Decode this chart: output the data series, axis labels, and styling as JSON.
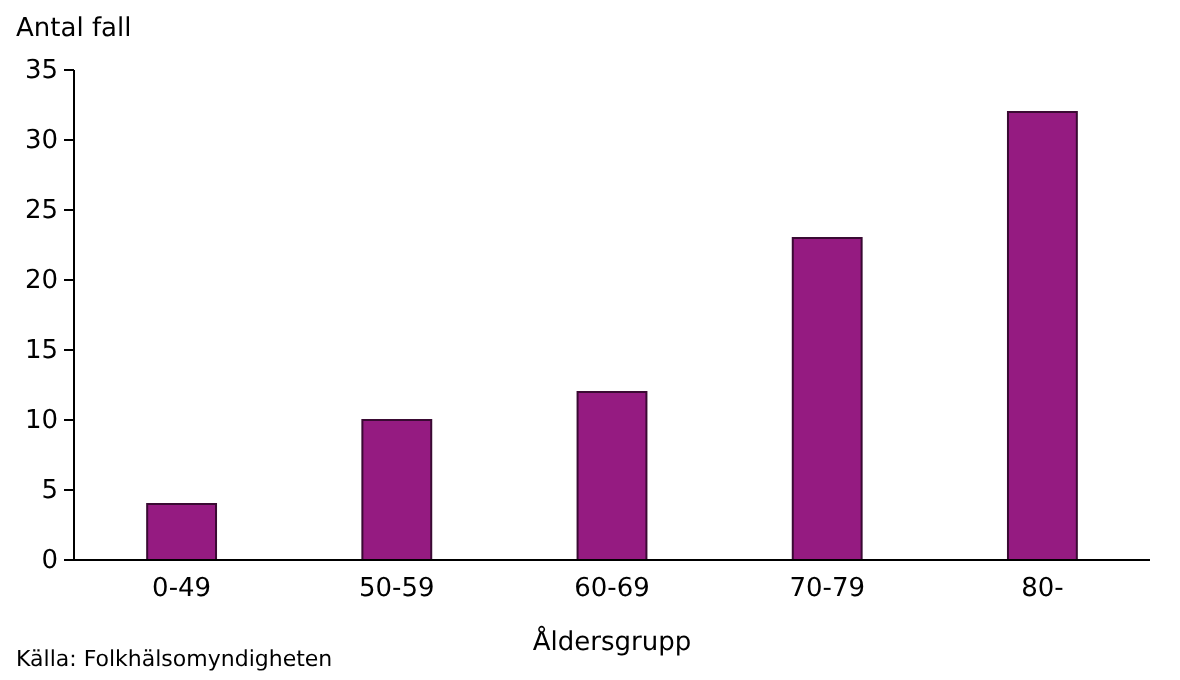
{
  "chart_data": {
    "type": "bar",
    "ylabel": "Antal fall",
    "xlabel": "Åldersgrupp",
    "annotations": [
      "Källa: Folkhälsomyndigheten"
    ],
    "categories": [
      "0-49",
      "50-59",
      "60-69",
      "70-79",
      "80-"
    ],
    "values": [
      4,
      10,
      12,
      23,
      32
    ],
    "color": "#951b81",
    "ylim": [
      0,
      35
    ],
    "yticks": [
      0,
      5,
      10,
      15,
      20,
      25,
      30,
      35
    ],
    "grid": false
  }
}
